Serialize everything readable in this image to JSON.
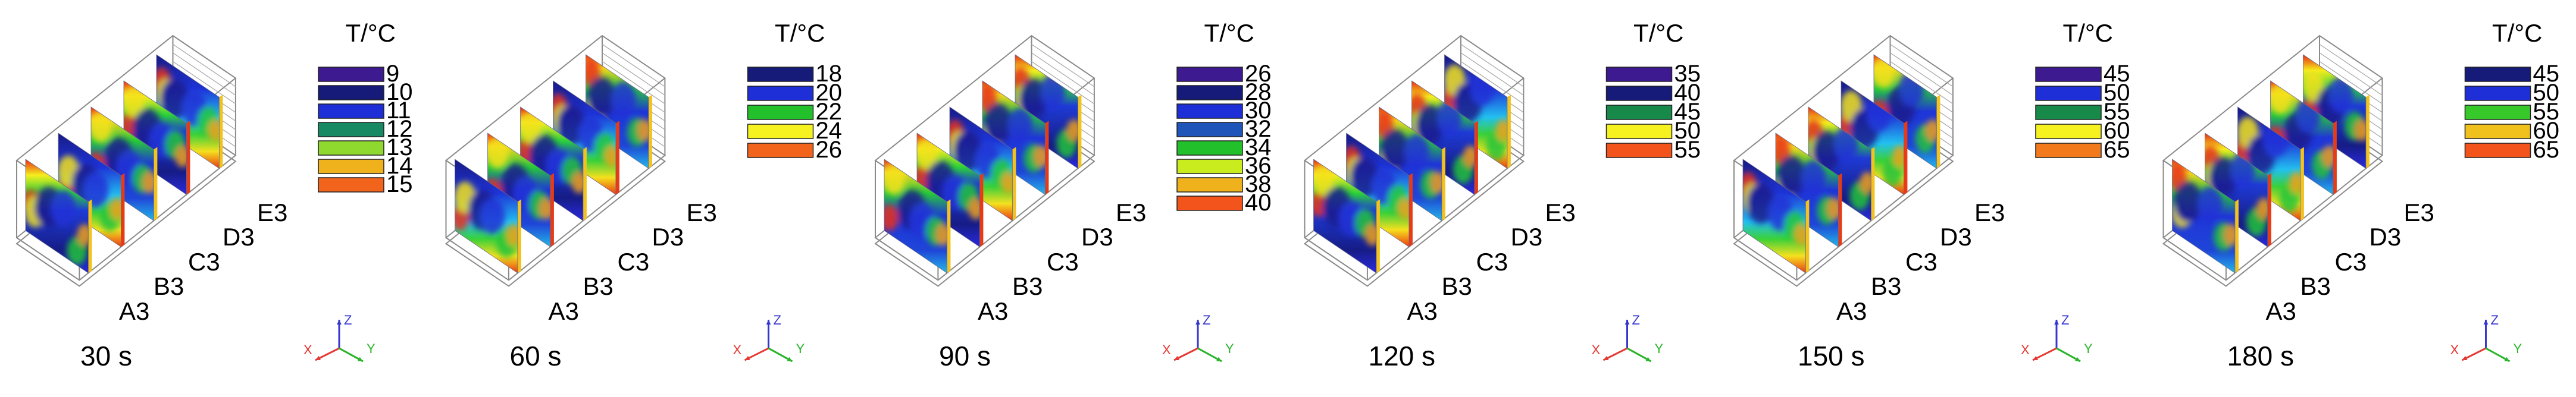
{
  "unit_label": "T/°C",
  "slice_labels": [
    "A3",
    "B3",
    "C3",
    "D3",
    "E3"
  ],
  "axes": {
    "x": "X",
    "y": "Y",
    "z": "Z",
    "x_color": "#e53935",
    "y_color": "#2bb52b",
    "z_color": "#3535d0"
  },
  "frames": [
    {
      "time": "30 s",
      "phase": 0.2,
      "legend": [
        {
          "value": "9",
          "color": "#3d1a8f"
        },
        {
          "value": "10",
          "color": "#161a78"
        },
        {
          "value": "11",
          "color": "#1f2fd8"
        },
        {
          "value": "12",
          "color": "#178a63"
        },
        {
          "value": "13",
          "color": "#8fd92e"
        },
        {
          "value": "14",
          "color": "#f0b21c"
        },
        {
          "value": "15",
          "color": "#f2641c"
        }
      ]
    },
    {
      "time": "60 s",
      "phase": 1.1,
      "legend": [
        {
          "value": "18",
          "color": "#161a78"
        },
        {
          "value": "20",
          "color": "#1f2fd8"
        },
        {
          "value": "22",
          "color": "#22c02a"
        },
        {
          "value": "24",
          "color": "#f5f21f"
        },
        {
          "value": "26",
          "color": "#f2641c"
        }
      ]
    },
    {
      "time": "90 s",
      "phase": 2.0,
      "legend": [
        {
          "value": "26",
          "color": "#3d1a8f"
        },
        {
          "value": "28",
          "color": "#161a78"
        },
        {
          "value": "30",
          "color": "#1f2fd8"
        },
        {
          "value": "32",
          "color": "#1d55b8"
        },
        {
          "value": "34",
          "color": "#22c02a"
        },
        {
          "value": "36",
          "color": "#c9ec1e"
        },
        {
          "value": "38",
          "color": "#f0b21c"
        },
        {
          "value": "40",
          "color": "#f2541c"
        }
      ]
    },
    {
      "time": "120 s",
      "phase": 2.9,
      "legend": [
        {
          "value": "35",
          "color": "#3d1a8f"
        },
        {
          "value": "40",
          "color": "#161a78"
        },
        {
          "value": "45",
          "color": "#178a4a"
        },
        {
          "value": "50",
          "color": "#f5f21f"
        },
        {
          "value": "55",
          "color": "#f2541c"
        }
      ]
    },
    {
      "time": "150 s",
      "phase": 3.8,
      "legend": [
        {
          "value": "45",
          "color": "#3d1a8f"
        },
        {
          "value": "50",
          "color": "#1f2fd8"
        },
        {
          "value": "55",
          "color": "#178a4a"
        },
        {
          "value": "60",
          "color": "#f5f21f"
        },
        {
          "value": "65",
          "color": "#f2791c"
        }
      ]
    },
    {
      "time": "180 s",
      "phase": 4.7,
      "legend": [
        {
          "value": "45",
          "color": "#161a78"
        },
        {
          "value": "50",
          "color": "#1f2fd8"
        },
        {
          "value": "55",
          "color": "#37c92a"
        },
        {
          "value": "60",
          "color": "#f0c01c"
        },
        {
          "value": "65",
          "color": "#f2541c"
        }
      ]
    }
  ]
}
